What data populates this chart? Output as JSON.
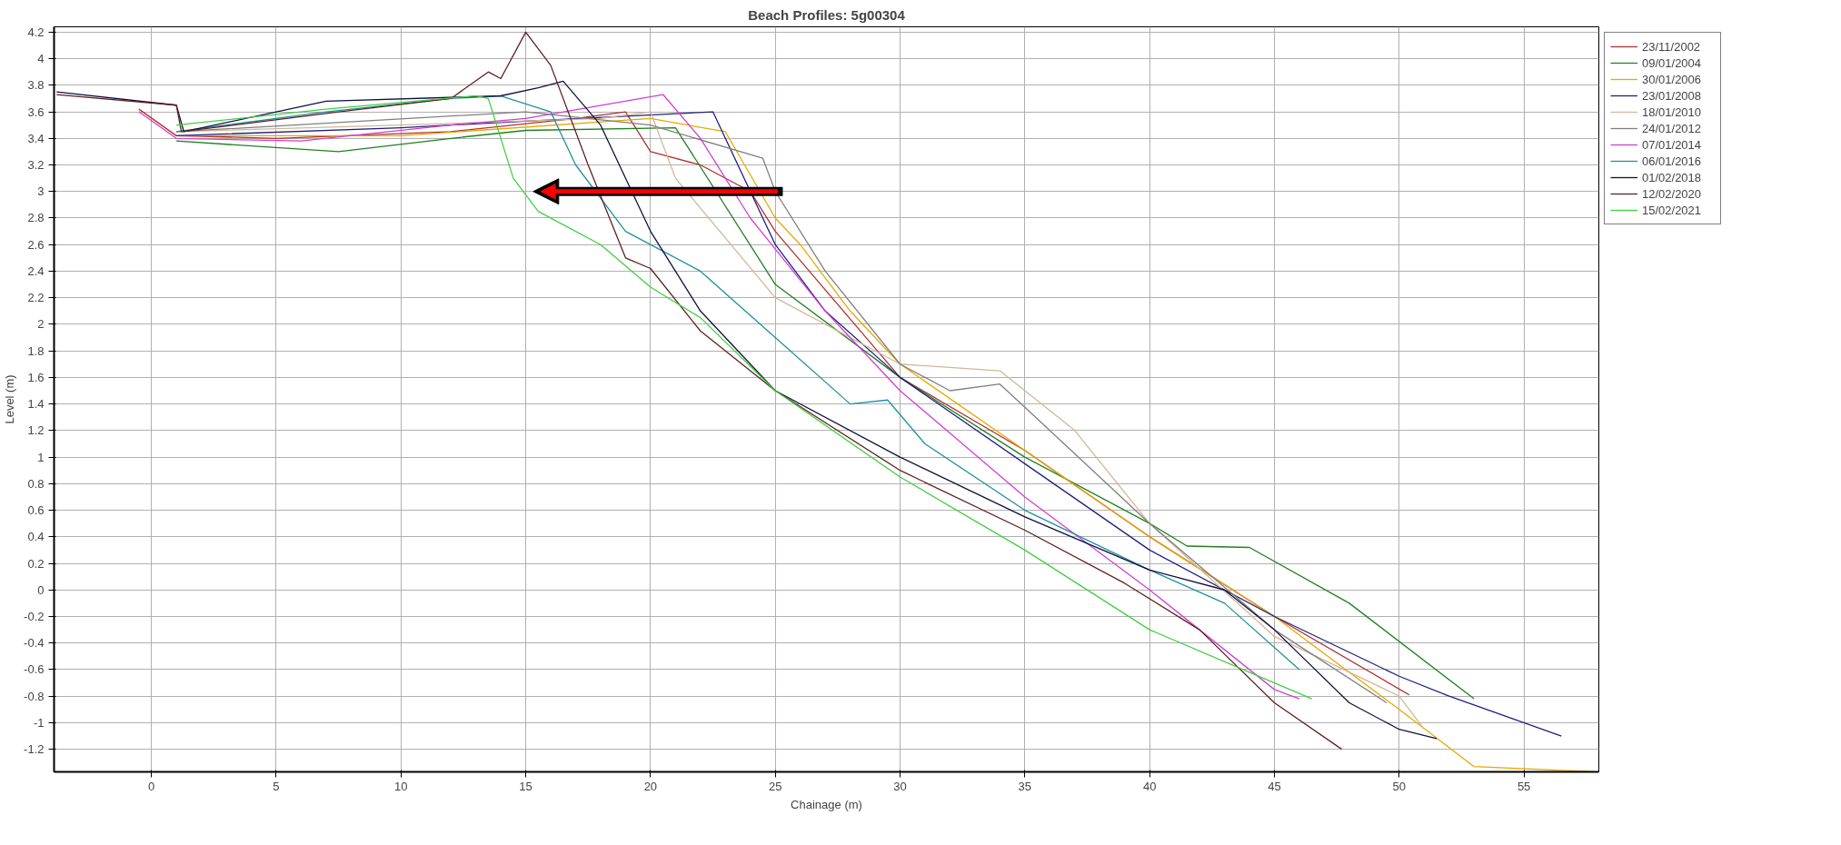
{
  "chart_data": {
    "type": "line",
    "title": "Beach Profiles: 5g00304",
    "xlabel": "Chainage (m)",
    "ylabel": "Level (m)",
    "xlim": [
      -3.9,
      58
    ],
    "ylim": [
      -1.37,
      4.24
    ],
    "xticks": [
      0,
      5,
      10,
      15,
      20,
      25,
      30,
      35,
      40,
      45,
      50,
      55
    ],
    "yticks": [
      -1.2,
      -1,
      -0.8,
      -0.6,
      -0.4,
      -0.2,
      0,
      0.2,
      0.4,
      0.6,
      0.8,
      1,
      1.2,
      1.4,
      1.6,
      1.8,
      2,
      2.2,
      2.4,
      2.6,
      2.8,
      3,
      3.2,
      3.4,
      3.6,
      3.8,
      4,
      4.2
    ],
    "grid": true,
    "legend": "top right",
    "marker": "none",
    "line_style": "solid",
    "series": [
      {
        "name": "23/11/2002",
        "color": "#b03030",
        "x": [
          -0.5,
          1,
          5,
          12,
          17,
          19,
          20,
          22,
          24,
          25,
          30,
          35,
          40,
          45,
          50.4
        ],
        "values": [
          3.62,
          3.42,
          3.4,
          3.45,
          3.55,
          3.6,
          3.3,
          3.2,
          3.0,
          2.7,
          1.6,
          1.05,
          0.4,
          -0.2,
          -0.79
        ]
      },
      {
        "name": "09/01/2004",
        "color": "#208020",
        "x": [
          1,
          7.5,
          12,
          15,
          21,
          25,
          30,
          35,
          40,
          41.5,
          44,
          48,
          53
        ],
        "values": [
          3.38,
          3.3,
          3.4,
          3.46,
          3.48,
          2.3,
          1.6,
          1.0,
          0.5,
          0.33,
          0.32,
          -0.1,
          -0.82
        ]
      },
      {
        "name": "30/01/2006",
        "color": "#e8a800",
        "x": [
          1,
          10,
          20,
          23,
          25,
          26,
          28,
          30,
          35,
          40,
          45,
          50,
          53,
          57.8
        ],
        "values": [
          3.42,
          3.42,
          3.55,
          3.45,
          2.8,
          2.6,
          2.1,
          1.7,
          1.05,
          0.4,
          -0.2,
          -0.9,
          -1.33,
          -1.37
        ]
      },
      {
        "name": "23/01/2008",
        "color": "#202080",
        "x": [
          1,
          10,
          15,
          22.5,
          25,
          27,
          30,
          35,
          40,
          45,
          50,
          52,
          56.5
        ],
        "values": [
          3.42,
          3.48,
          3.53,
          3.6,
          2.6,
          2.1,
          1.6,
          0.95,
          0.3,
          -0.2,
          -0.65,
          -0.8,
          -1.1
        ]
      },
      {
        "name": "18/01/2010",
        "color": "#d0b898",
        "x": [
          1,
          10,
          18,
          20,
          21,
          25,
          30,
          34,
          37,
          40,
          45,
          50,
          51
        ],
        "values": [
          3.45,
          3.5,
          3.55,
          3.6,
          3.1,
          2.2,
          1.7,
          1.65,
          1.2,
          0.5,
          -0.35,
          -0.8,
          -1.05
        ]
      },
      {
        "name": "24/01/2012",
        "color": "#808080",
        "x": [
          1,
          15,
          20,
          24.5,
          25,
          27,
          30,
          32,
          34,
          36,
          40,
          45,
          49.5
        ],
        "values": [
          3.45,
          3.6,
          3.5,
          3.25,
          3.0,
          2.4,
          1.7,
          1.5,
          1.55,
          1.2,
          0.5,
          -0.3,
          -0.85
        ]
      },
      {
        "name": "07/01/2014",
        "color": "#d040d0",
        "x": [
          -0.5,
          1,
          6,
          12,
          15,
          20.5,
          22,
          24,
          27,
          30,
          35,
          40,
          45,
          46
        ],
        "values": [
          3.6,
          3.4,
          3.38,
          3.5,
          3.55,
          3.73,
          3.4,
          2.8,
          2.1,
          1.5,
          0.7,
          0.0,
          -0.75,
          -0.82
        ]
      },
      {
        "name": "06/01/2016",
        "color": "#2090a0",
        "x": [
          1,
          7,
          12,
          14,
          16,
          17,
          19,
          22,
          25,
          28,
          29.5,
          31,
          35,
          40,
          43,
          46
        ],
        "values": [
          3.45,
          3.6,
          3.7,
          3.72,
          3.6,
          3.2,
          2.7,
          2.4,
          1.9,
          1.4,
          1.43,
          1.1,
          0.6,
          0.15,
          -0.1,
          -0.6
        ]
      },
      {
        "name": "01/02/2018",
        "color": "#101040",
        "x": [
          -3.8,
          1,
          1.3,
          7,
          14,
          15.5,
          16.5,
          18,
          20,
          22,
          25,
          30,
          35,
          40,
          43,
          45,
          48,
          50,
          51.5
        ],
        "values": [
          3.75,
          3.65,
          3.45,
          3.68,
          3.72,
          3.78,
          3.83,
          3.5,
          2.7,
          2.1,
          1.5,
          1.0,
          0.55,
          0.15,
          0.0,
          -0.3,
          -0.85,
          -1.05,
          -1.12
        ]
      },
      {
        "name": "12/02/2020",
        "color": "#602020",
        "x": [
          -3.8,
          1,
          1.2,
          7.5,
          12,
          13.5,
          14,
          15,
          16,
          17.5,
          19,
          20,
          22,
          25,
          30,
          35,
          39,
          42,
          45,
          47.7
        ],
        "values": [
          3.73,
          3.65,
          3.45,
          3.6,
          3.7,
          3.9,
          3.85,
          4.2,
          3.95,
          3.2,
          2.5,
          2.42,
          1.95,
          1.5,
          0.9,
          0.45,
          0.05,
          -0.3,
          -0.85,
          -1.2
        ]
      },
      {
        "name": "15/02/2021",
        "color": "#40d040",
        "x": [
          1,
          7,
          13,
          13.5,
          14.5,
          15.5,
          18,
          20,
          22,
          25,
          30,
          35,
          40,
          45,
          46.5
        ],
        "values": [
          3.5,
          3.62,
          3.72,
          3.7,
          3.1,
          2.85,
          2.6,
          2.28,
          2.05,
          1.5,
          0.85,
          0.3,
          -0.3,
          -0.7,
          -0.82
        ]
      }
    ]
  }
}
